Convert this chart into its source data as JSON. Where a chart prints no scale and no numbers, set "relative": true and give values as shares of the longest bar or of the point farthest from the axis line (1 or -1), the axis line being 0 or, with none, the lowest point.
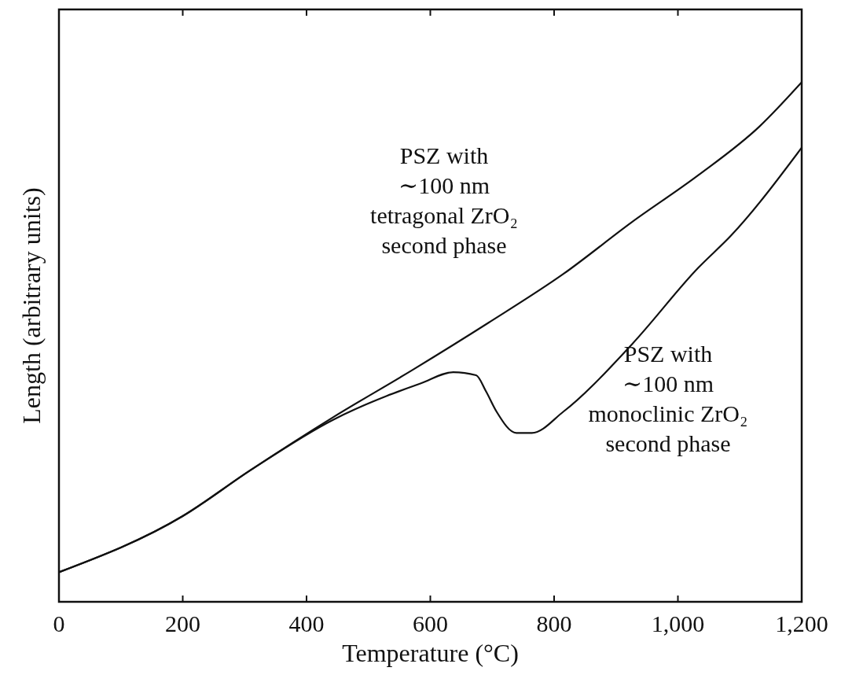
{
  "chart_data": {
    "type": "line",
    "relative": true,
    "xlabel": "Temperature (°C)",
    "ylabel": "Length (arbitrary units)",
    "xlim": [
      0,
      1200
    ],
    "xticks": [
      0,
      200,
      400,
      600,
      800,
      {
        "value": 1000,
        "label": "1,000"
      },
      {
        "value": 1200,
        "label": "1,200"
      }
    ],
    "grid": false,
    "marker": "none",
    "line_style": "solid",
    "series": [
      {
        "name": "PSZ with\n∼100 nm\ntetragonal ZrO₂\nsecond phase",
        "color": "#111111",
        "x": [
          0,
          200,
          309,
          444,
          571,
          694,
          815,
          926,
          1033,
          1132,
          1200
        ],
        "values": [
          0.057,
          0.165,
          0.253,
          0.356,
          0.446,
          0.537,
          0.631,
          0.731,
          0.821,
          0.915,
          1.0
        ]
      },
      {
        "name": "PSZ with\n∼100 nm\nmonoclinic ZrO₂\nsecond phase",
        "color": "#111111",
        "x": [
          0,
          200,
          309,
          444,
          529,
          584,
          637,
          674,
          690,
          707,
          739,
          764,
          815,
          926,
          1033,
          1086,
          1200
        ],
        "values": [
          0.057,
          0.165,
          0.253,
          0.351,
          0.396,
          0.42,
          0.442,
          0.436,
          0.405,
          0.366,
          0.325,
          0.325,
          0.366,
          0.496,
          0.643,
          0.705,
          0.874
        ]
      }
    ]
  }
}
